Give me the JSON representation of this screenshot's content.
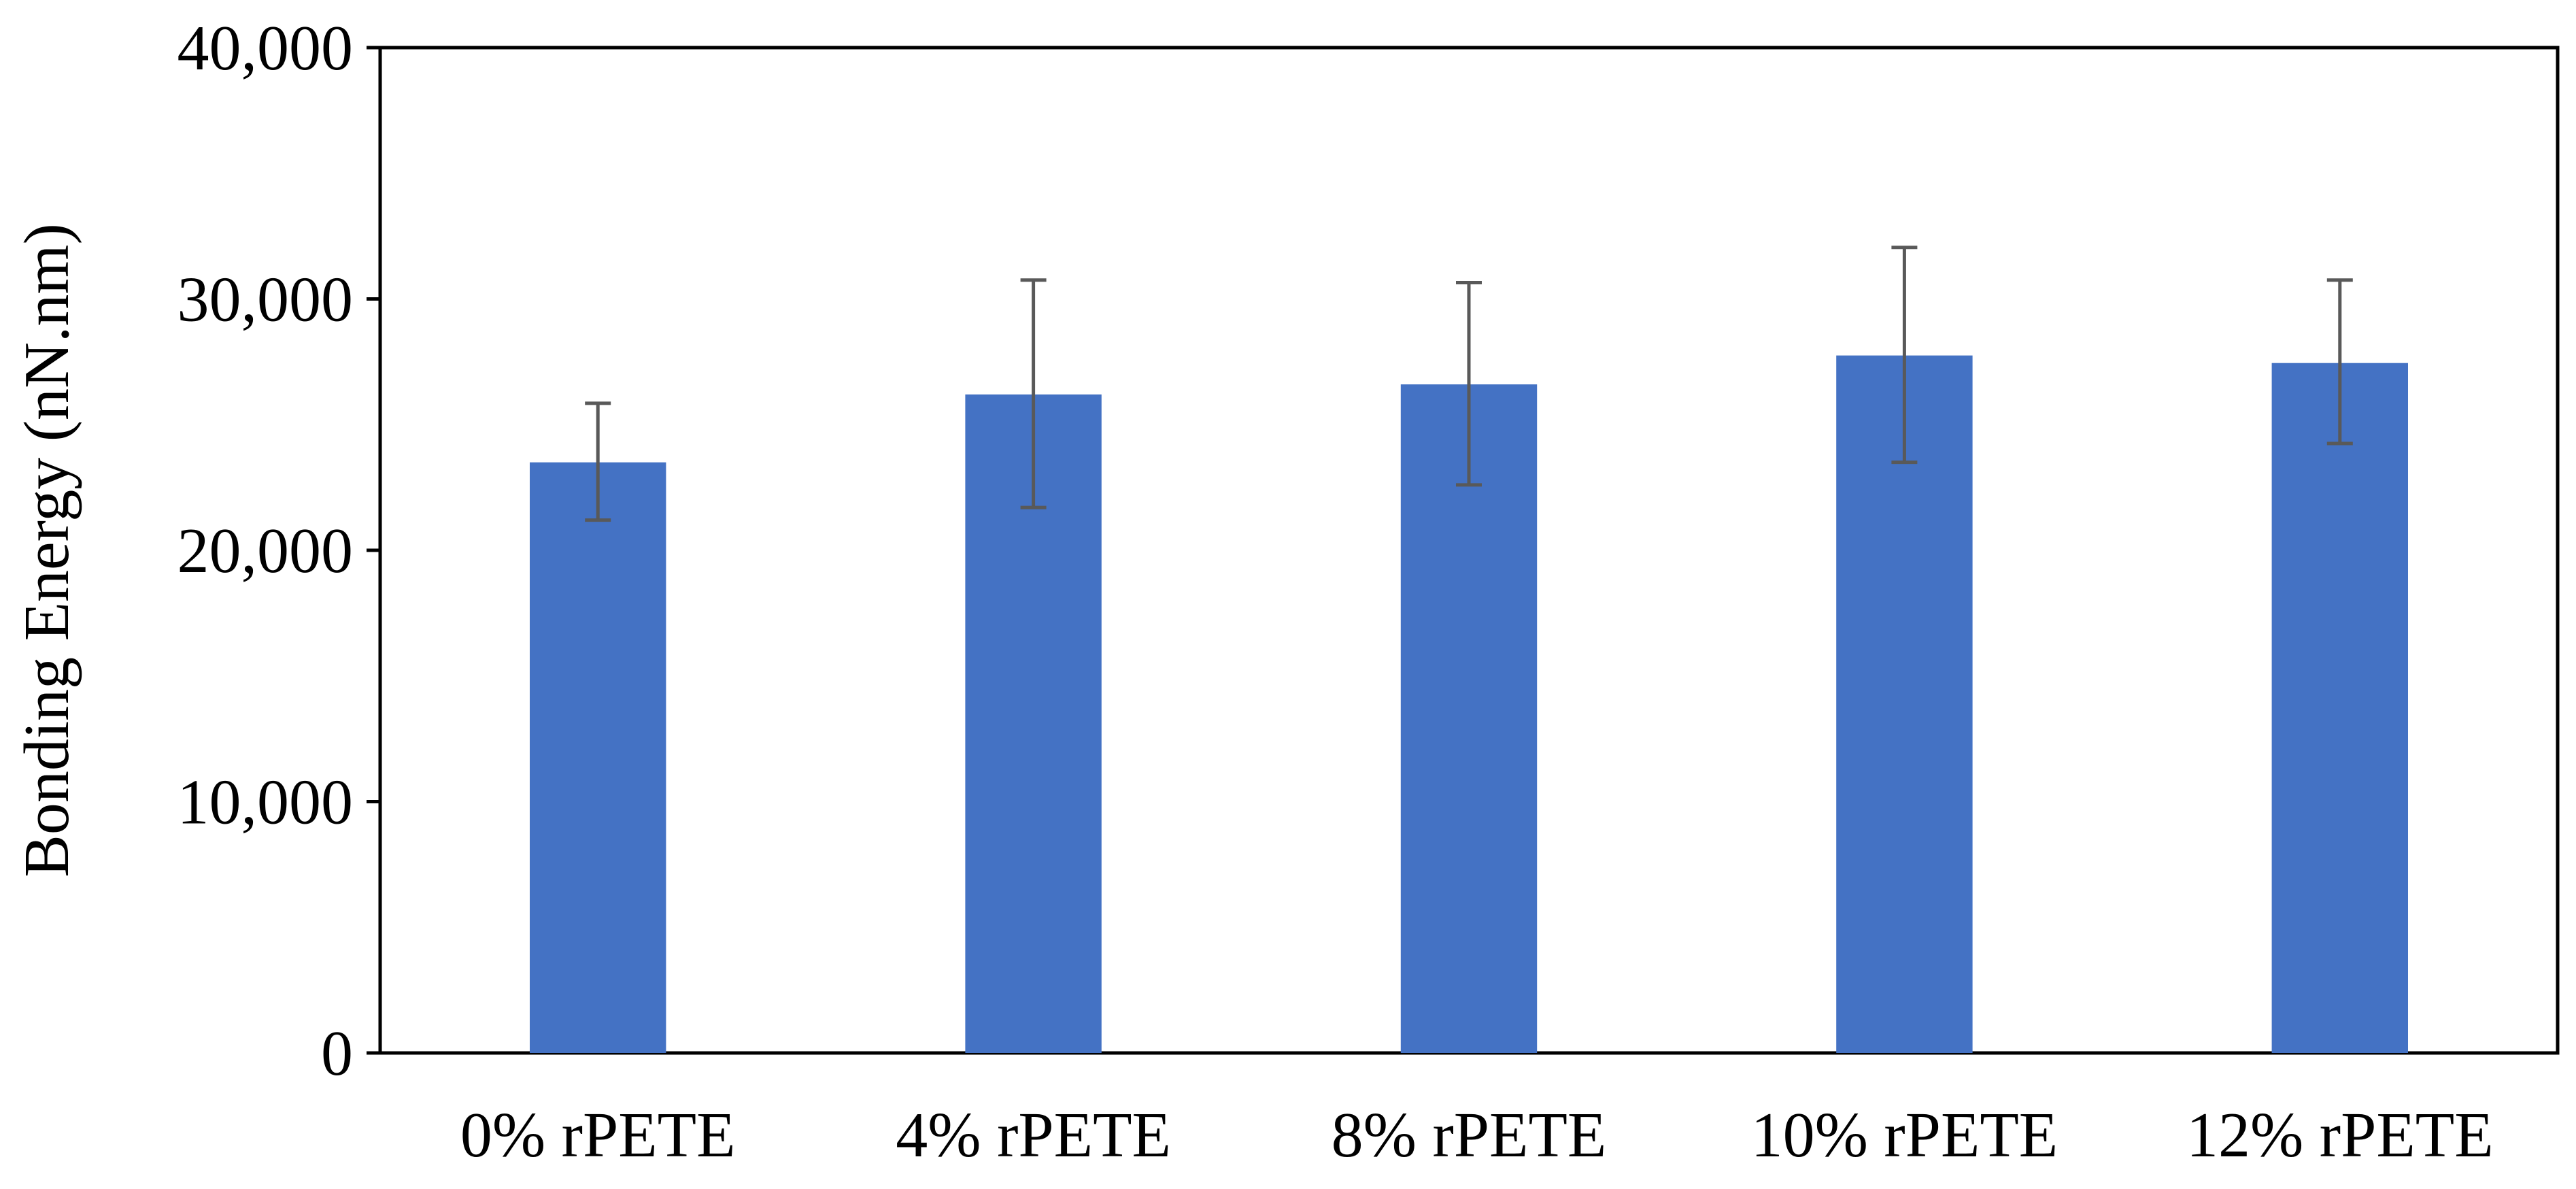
{
  "chart_data": {
    "type": "bar",
    "title": "",
    "xlabel": "",
    "ylabel": "Bonding Energy (nN.nm)",
    "ylim": [
      0,
      40000
    ],
    "yticks": [
      0,
      10000,
      20000,
      30000,
      40000
    ],
    "ytick_labels": [
      "0",
      "10,000",
      "20,000",
      "30,000",
      "40,000"
    ],
    "categories": [
      "0% rPETE",
      "4% rPETE",
      "8% rPETE",
      "10% rPETE",
      "12% rPETE"
    ],
    "values": [
      23500,
      26200,
      26600,
      27750,
      27450
    ],
    "error_upper": [
      25850,
      30750,
      30650,
      32050,
      30750
    ],
    "error_lower": [
      21200,
      21700,
      22600,
      23500,
      24250
    ],
    "bar_color": "#4472C4",
    "error_bar_color": "#595959",
    "grid": false,
    "legend": "none"
  }
}
